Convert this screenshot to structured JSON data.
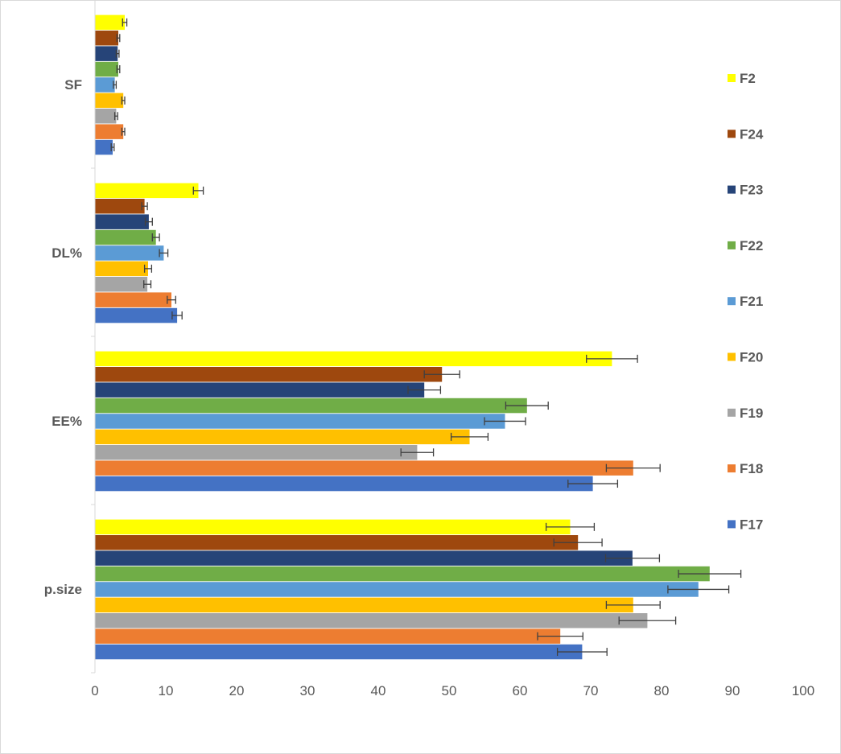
{
  "chart_data": {
    "type": "bar",
    "orientation": "horizontal",
    "title": "",
    "xlabel": "",
    "ylabel": "",
    "xlim": [
      0,
      100
    ],
    "x_ticks": [
      "0",
      "10",
      "20",
      "30",
      "40",
      "50",
      "60",
      "70",
      "80",
      "90",
      "100"
    ],
    "categories": [
      "p.size",
      "EE%",
      "DL%",
      "SF"
    ],
    "legend_position": "right",
    "grid": false,
    "series": [
      {
        "name": "F17",
        "color": "#4472C4",
        "values": [
          68.8,
          70.3,
          11.6,
          2.5
        ],
        "errors": [
          3.5,
          3.5,
          0.7,
          0.2
        ]
      },
      {
        "name": "F18",
        "color": "#ED7D31",
        "values": [
          65.7,
          76.0,
          10.8,
          4.0
        ],
        "errors": [
          3.2,
          3.8,
          0.6,
          0.2
        ]
      },
      {
        "name": "F19",
        "color": "#A5A5A5",
        "values": [
          78.0,
          45.5,
          7.4,
          3.0
        ],
        "errors": [
          4.0,
          2.3,
          0.5,
          0.2
        ]
      },
      {
        "name": "F20",
        "color": "#FFC000",
        "values": [
          76.0,
          52.9,
          7.5,
          4.0
        ],
        "errors": [
          3.8,
          2.6,
          0.5,
          0.2
        ]
      },
      {
        "name": "F21",
        "color": "#5B9BD5",
        "values": [
          85.2,
          57.9,
          9.7,
          2.8
        ],
        "errors": [
          4.3,
          2.9,
          0.6,
          0.2
        ]
      },
      {
        "name": "F22",
        "color": "#70AD47",
        "values": [
          86.8,
          61.0,
          8.6,
          3.3
        ],
        "errors": [
          4.4,
          3.0,
          0.5,
          0.2
        ]
      },
      {
        "name": "F23",
        "color": "#264478",
        "values": [
          75.9,
          46.5,
          7.6,
          3.2
        ],
        "errors": [
          3.8,
          2.3,
          0.5,
          0.2
        ]
      },
      {
        "name": "F24",
        "color": "#9E480E",
        "values": [
          68.2,
          49.0,
          7.0,
          3.3
        ],
        "errors": [
          3.4,
          2.5,
          0.4,
          0.2
        ]
      },
      {
        "name": "F2",
        "color": "#FFFF00",
        "values": [
          67.1,
          73.0,
          14.6,
          4.2
        ],
        "errors": [
          3.4,
          3.6,
          0.7,
          0.3
        ]
      }
    ]
  }
}
